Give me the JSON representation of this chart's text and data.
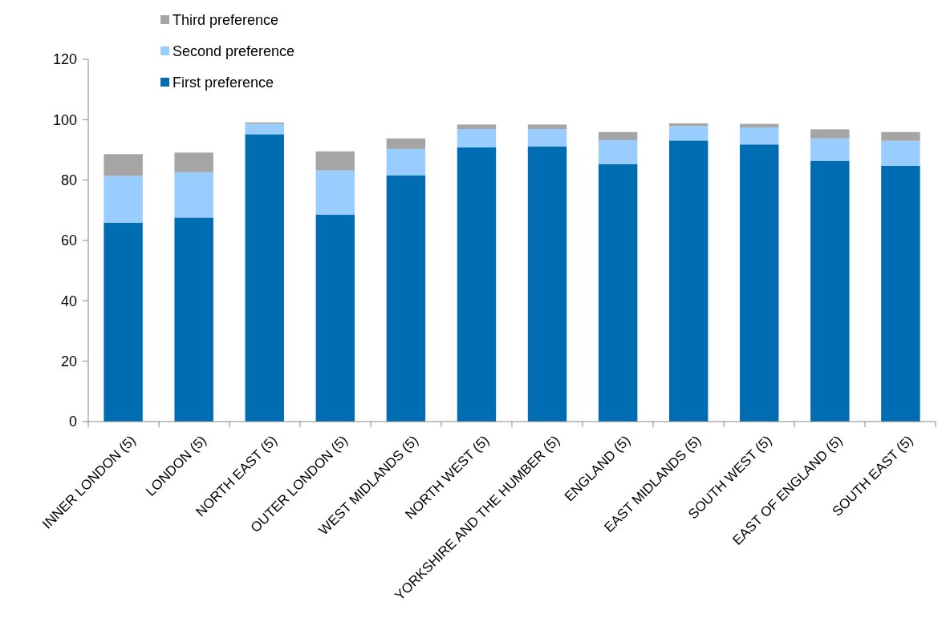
{
  "chart_data": {
    "type": "bar",
    "stacked": true,
    "categories": [
      "INNER LONDON (5)",
      "LONDON (5)",
      "NORTH EAST (5)",
      "OUTER LONDON (5)",
      "WEST MIDLANDS (5)",
      "NORTH WEST (5)",
      "YORKSHIRE AND THE HUMBER (5)",
      "ENGLAND (5)",
      "EAST MIDLANDS (5)",
      "SOUTH WEST (5)",
      "EAST OF ENGLAND (5)",
      "SOUTH EAST (5)"
    ],
    "series": [
      {
        "name": "First preference",
        "color": "#006cb2",
        "values": [
          65.9,
          67.6,
          95.2,
          68.6,
          81.5,
          90.8,
          91.2,
          85.3,
          93.1,
          91.8,
          86.4,
          84.7
        ]
      },
      {
        "name": "Second preference",
        "color": "#99ccff",
        "values": [
          15.5,
          15.0,
          3.4,
          14.6,
          8.8,
          6.1,
          5.7,
          7.9,
          4.8,
          5.6,
          7.4,
          8.3
        ]
      },
      {
        "name": "Third preference",
        "color": "#a5a5a5",
        "values": [
          7.2,
          6.5,
          0.5,
          6.3,
          3.5,
          1.5,
          1.5,
          2.7,
          0.9,
          1.2,
          3.0,
          2.9
        ]
      }
    ],
    "ylim": [
      0,
      120
    ],
    "yticks": [
      0,
      20,
      40,
      60,
      80,
      100,
      120
    ],
    "legend": "top left"
  }
}
